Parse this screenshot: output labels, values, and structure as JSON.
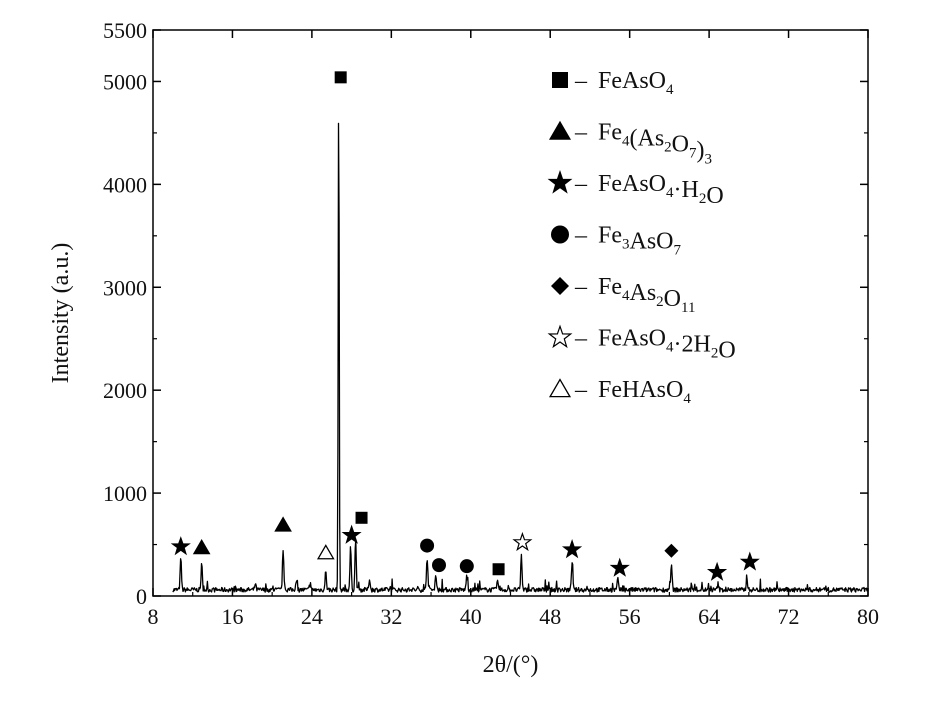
{
  "chart_data": {
    "type": "line",
    "xlabel": "2θ/(°)",
    "ylabel": "Intensity (a.u.)",
    "xlim": [
      8,
      80
    ],
    "ylim": [
      0,
      5500
    ],
    "xticks": [
      "8",
      "16",
      "24",
      "32",
      "40",
      "48",
      "56",
      "64",
      "72",
      "80"
    ],
    "yticks": [
      "0",
      "1000",
      "2000",
      "3000",
      "4000",
      "5000",
      "5500"
    ],
    "grid": false,
    "legend_position": "top-right",
    "series": [
      {
        "values": [
          [
            10.8,
            370
          ],
          [
            12.9,
            310
          ],
          [
            18.3,
            120
          ],
          [
            21.1,
            460
          ],
          [
            22.4,
            130
          ],
          [
            23.8,
            110
          ],
          [
            25.4,
            250
          ],
          [
            26.7,
            5000
          ],
          [
            27.9,
            480
          ],
          [
            28.4,
            560
          ],
          [
            29.8,
            170
          ],
          [
            35.6,
            380
          ],
          [
            36.5,
            200
          ],
          [
            39.6,
            200
          ],
          [
            42.7,
            150
          ],
          [
            45.1,
            400
          ],
          [
            50.2,
            340
          ],
          [
            54.8,
            170
          ],
          [
            60.2,
            330
          ],
          [
            64.9,
            120
          ],
          [
            67.8,
            200
          ],
          [
            75.7,
            90
          ]
        ],
        "baseline": 60
      }
    ],
    "legend": [
      {
        "marker": "filled-square",
        "parts": [
          [
            "FeAsO",
            ""
          ],
          [
            "4",
            "sub"
          ]
        ]
      },
      {
        "marker": "filled-triangle",
        "parts": [
          [
            "Fe",
            ""
          ],
          [
            "4",
            "sub"
          ],
          [
            "(As",
            ""
          ],
          [
            "2",
            "sub"
          ],
          [
            "O",
            ""
          ],
          [
            "7",
            "sub"
          ],
          [
            ")",
            ""
          ],
          [
            "3",
            "sub"
          ]
        ]
      },
      {
        "marker": "filled-star",
        "parts": [
          [
            "FeAsO",
            ""
          ],
          [
            "4",
            "sub"
          ],
          [
            "·H",
            ""
          ],
          [
            "2",
            "sub"
          ],
          [
            "O",
            ""
          ]
        ]
      },
      {
        "marker": "filled-circle",
        "parts": [
          [
            "Fe",
            ""
          ],
          [
            "3",
            "sub"
          ],
          [
            "AsO",
            ""
          ],
          [
            "7",
            "sub"
          ]
        ]
      },
      {
        "marker": "filled-diamond",
        "parts": [
          [
            "Fe",
            ""
          ],
          [
            "4",
            "sub"
          ],
          [
            "As",
            ""
          ],
          [
            "2",
            "sub"
          ],
          [
            "O",
            ""
          ],
          [
            "11",
            "sub"
          ]
        ]
      },
      {
        "marker": "open-star",
        "parts": [
          [
            "FeAsO",
            ""
          ],
          [
            "4",
            "sub"
          ],
          [
            "·2H",
            ""
          ],
          [
            "2",
            "sub"
          ],
          [
            "O",
            ""
          ]
        ]
      },
      {
        "marker": "open-triangle",
        "parts": [
          [
            "FeHAsO",
            ""
          ],
          [
            "4",
            "sub"
          ]
        ]
      }
    ],
    "peak_markers": [
      {
        "x": 10.8,
        "y": 480,
        "marker": "filled-star"
      },
      {
        "x": 12.9,
        "y": 470,
        "marker": "filled-triangle"
      },
      {
        "x": 21.1,
        "y": 690,
        "marker": "filled-triangle"
      },
      {
        "x": 25.4,
        "y": 420,
        "marker": "open-triangle"
      },
      {
        "x": 26.9,
        "y": 5040,
        "marker": "filled-square"
      },
      {
        "x": 28.0,
        "y": 590,
        "marker": "filled-star"
      },
      {
        "x": 29.0,
        "y": 760,
        "marker": "filled-square"
      },
      {
        "x": 35.6,
        "y": 490,
        "marker": "filled-circle"
      },
      {
        "x": 36.8,
        "y": 300,
        "marker": "filled-circle"
      },
      {
        "x": 39.6,
        "y": 290,
        "marker": "filled-circle"
      },
      {
        "x": 42.8,
        "y": 260,
        "marker": "filled-square"
      },
      {
        "x": 45.2,
        "y": 520,
        "marker": "open-star"
      },
      {
        "x": 50.2,
        "y": 450,
        "marker": "filled-star"
      },
      {
        "x": 55.0,
        "y": 270,
        "marker": "filled-star"
      },
      {
        "x": 60.2,
        "y": 440,
        "marker": "filled-diamond"
      },
      {
        "x": 64.8,
        "y": 230,
        "marker": "filled-star"
      },
      {
        "x": 68.1,
        "y": 330,
        "marker": "filled-star"
      }
    ]
  }
}
